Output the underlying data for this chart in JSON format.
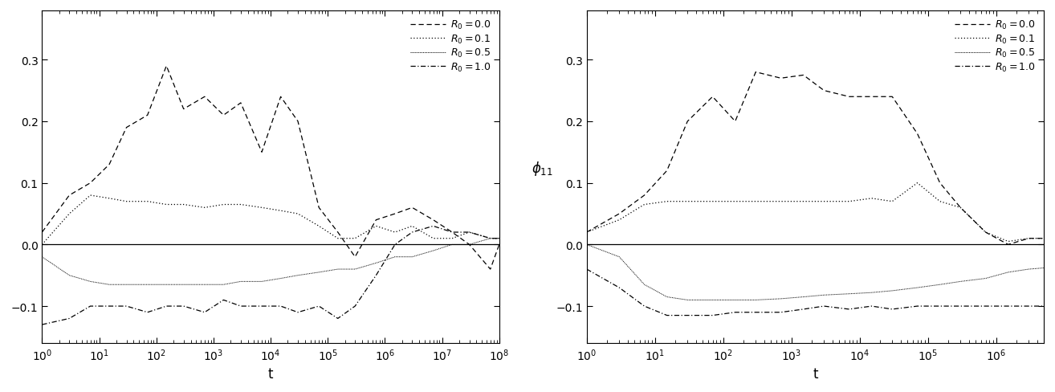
{
  "left_panel": {
    "xlabel": "t",
    "xlim": [
      1,
      100000000.0
    ],
    "ylim": [
      -0.16,
      0.38
    ],
    "yticks": [
      -0.1,
      0.0,
      0.1,
      0.2,
      0.3
    ],
    "R0_0.0": {
      "t": [
        1,
        3,
        7,
        15,
        30,
        70,
        150,
        300,
        700,
        1500,
        3000,
        7000,
        15000,
        30000,
        70000,
        150000,
        300000,
        700000,
        1500000,
        3000000,
        7000000,
        15000000,
        30000000,
        70000000,
        100000000
      ],
      "y": [
        0.02,
        0.08,
        0.1,
        0.13,
        0.19,
        0.21,
        0.29,
        0.22,
        0.24,
        0.21,
        0.23,
        0.15,
        0.24,
        0.2,
        0.06,
        0.02,
        -0.02,
        0.04,
        0.05,
        0.06,
        0.04,
        0.02,
        0.0,
        -0.04,
        0.0
      ]
    },
    "R0_0.1": {
      "t": [
        1,
        3,
        7,
        15,
        30,
        70,
        150,
        300,
        700,
        1500,
        3000,
        7000,
        15000,
        30000,
        70000,
        150000,
        300000,
        700000,
        1500000,
        3000000,
        7000000,
        15000000,
        30000000,
        70000000,
        100000000
      ],
      "y": [
        0.0,
        0.05,
        0.08,
        0.075,
        0.07,
        0.07,
        0.065,
        0.065,
        0.06,
        0.065,
        0.065,
        0.06,
        0.055,
        0.05,
        0.03,
        0.01,
        0.01,
        0.03,
        0.02,
        0.03,
        0.01,
        0.01,
        0.02,
        0.01,
        0.01
      ]
    },
    "R0_0.5": {
      "t": [
        1,
        3,
        7,
        15,
        30,
        70,
        150,
        300,
        700,
        1500,
        3000,
        7000,
        15000,
        30000,
        70000,
        150000,
        300000,
        700000,
        1500000,
        3000000,
        7000000,
        15000000,
        30000000,
        70000000,
        100000000
      ],
      "y": [
        -0.02,
        -0.05,
        -0.06,
        -0.065,
        -0.065,
        -0.065,
        -0.065,
        -0.065,
        -0.065,
        -0.065,
        -0.06,
        -0.06,
        -0.055,
        -0.05,
        -0.045,
        -0.04,
        -0.04,
        -0.03,
        -0.02,
        -0.02,
        -0.01,
        0.0,
        0.0,
        0.01,
        0.01
      ]
    },
    "R0_1.0": {
      "t": [
        1,
        3,
        7,
        15,
        30,
        70,
        150,
        300,
        700,
        1500,
        3000,
        7000,
        15000,
        30000,
        70000,
        150000,
        300000,
        700000,
        1500000,
        3000000,
        7000000,
        15000000,
        30000000,
        70000000,
        100000000
      ],
      "y": [
        -0.13,
        -0.12,
        -0.1,
        -0.1,
        -0.1,
        -0.11,
        -0.1,
        -0.1,
        -0.11,
        -0.09,
        -0.1,
        -0.1,
        -0.1,
        -0.11,
        -0.1,
        -0.12,
        -0.1,
        -0.05,
        0.0,
        0.02,
        0.03,
        0.02,
        0.02,
        0.01,
        0.01
      ]
    }
  },
  "right_panel": {
    "xlabel": "t",
    "ylabel": "$\\phi_{11}$",
    "xlim": [
      1,
      5000000.0
    ],
    "ylim": [
      -0.16,
      0.38
    ],
    "yticks": [
      -0.1,
      0.0,
      0.1,
      0.2,
      0.3
    ],
    "R0_0.0": {
      "t": [
        1,
        3,
        7,
        15,
        30,
        70,
        150,
        300,
        700,
        1500,
        3000,
        7000,
        15000,
        30000,
        70000,
        150000,
        300000,
        700000,
        1500000,
        3000000,
        5000000
      ],
      "y": [
        0.02,
        0.05,
        0.08,
        0.12,
        0.2,
        0.24,
        0.2,
        0.28,
        0.27,
        0.275,
        0.25,
        0.24,
        0.24,
        0.24,
        0.18,
        0.1,
        0.06,
        0.02,
        0.0,
        0.01,
        0.01
      ]
    },
    "R0_0.1": {
      "t": [
        1,
        3,
        7,
        15,
        30,
        70,
        150,
        300,
        700,
        1500,
        3000,
        7000,
        15000,
        30000,
        70000,
        150000,
        300000,
        700000,
        1500000,
        3000000,
        5000000
      ],
      "y": [
        0.02,
        0.04,
        0.065,
        0.07,
        0.07,
        0.07,
        0.07,
        0.07,
        0.07,
        0.07,
        0.07,
        0.07,
        0.075,
        0.07,
        0.1,
        0.07,
        0.06,
        0.02,
        0.005,
        0.01,
        0.01
      ]
    },
    "R0_0.5": {
      "t": [
        1,
        3,
        7,
        15,
        30,
        70,
        150,
        300,
        700,
        1500,
        3000,
        7000,
        15000,
        30000,
        70000,
        150000,
        300000,
        700000,
        1500000,
        3000000,
        5000000
      ],
      "y": [
        0.0,
        -0.02,
        -0.065,
        -0.085,
        -0.09,
        -0.09,
        -0.09,
        -0.09,
        -0.088,
        -0.085,
        -0.082,
        -0.08,
        -0.078,
        -0.075,
        -0.07,
        -0.065,
        -0.06,
        -0.055,
        -0.045,
        -0.04,
        -0.038
      ]
    },
    "R0_1.0": {
      "t": [
        1,
        3,
        7,
        15,
        30,
        70,
        150,
        300,
        700,
        1500,
        3000,
        7000,
        15000,
        30000,
        70000,
        150000,
        300000,
        700000,
        1500000,
        3000000,
        5000000
      ],
      "y": [
        -0.04,
        -0.07,
        -0.1,
        -0.115,
        -0.115,
        -0.115,
        -0.11,
        -0.11,
        -0.11,
        -0.105,
        -0.1,
        -0.105,
        -0.1,
        -0.105,
        -0.1,
        -0.1,
        -0.1,
        -0.1,
        -0.1,
        -0.1,
        -0.1
      ]
    }
  }
}
